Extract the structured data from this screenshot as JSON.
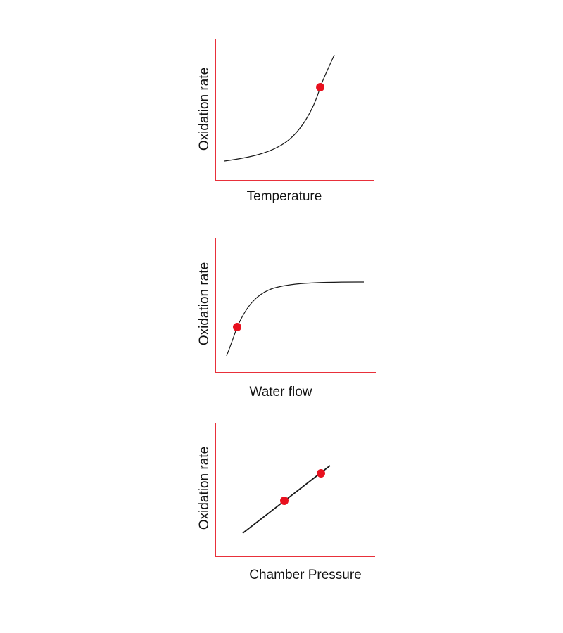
{
  "chart_data": [
    {
      "type": "line",
      "xlabel": "Temperature",
      "ylabel": "Oxidation rate",
      "colors": {
        "axes": "#e8303a",
        "curve": "#1a1a1a",
        "marker": "#e8101e"
      },
      "curve_shape": "exponential",
      "highlighted_points": 1
    },
    {
      "type": "line",
      "xlabel": "Water flow",
      "ylabel": "Oxidation rate",
      "colors": {
        "axes": "#e8303a",
        "curve": "#1a1a1a",
        "marker": "#e8101e"
      },
      "curve_shape": "saturating",
      "highlighted_points": 1
    },
    {
      "type": "line",
      "xlabel": "Chamber Pressure",
      "ylabel": "Oxidation rate",
      "colors": {
        "axes": "#e8303a",
        "curve": "#1a1a1a",
        "marker": "#e8101e"
      },
      "curve_shape": "linear",
      "highlighted_points": 2
    }
  ]
}
